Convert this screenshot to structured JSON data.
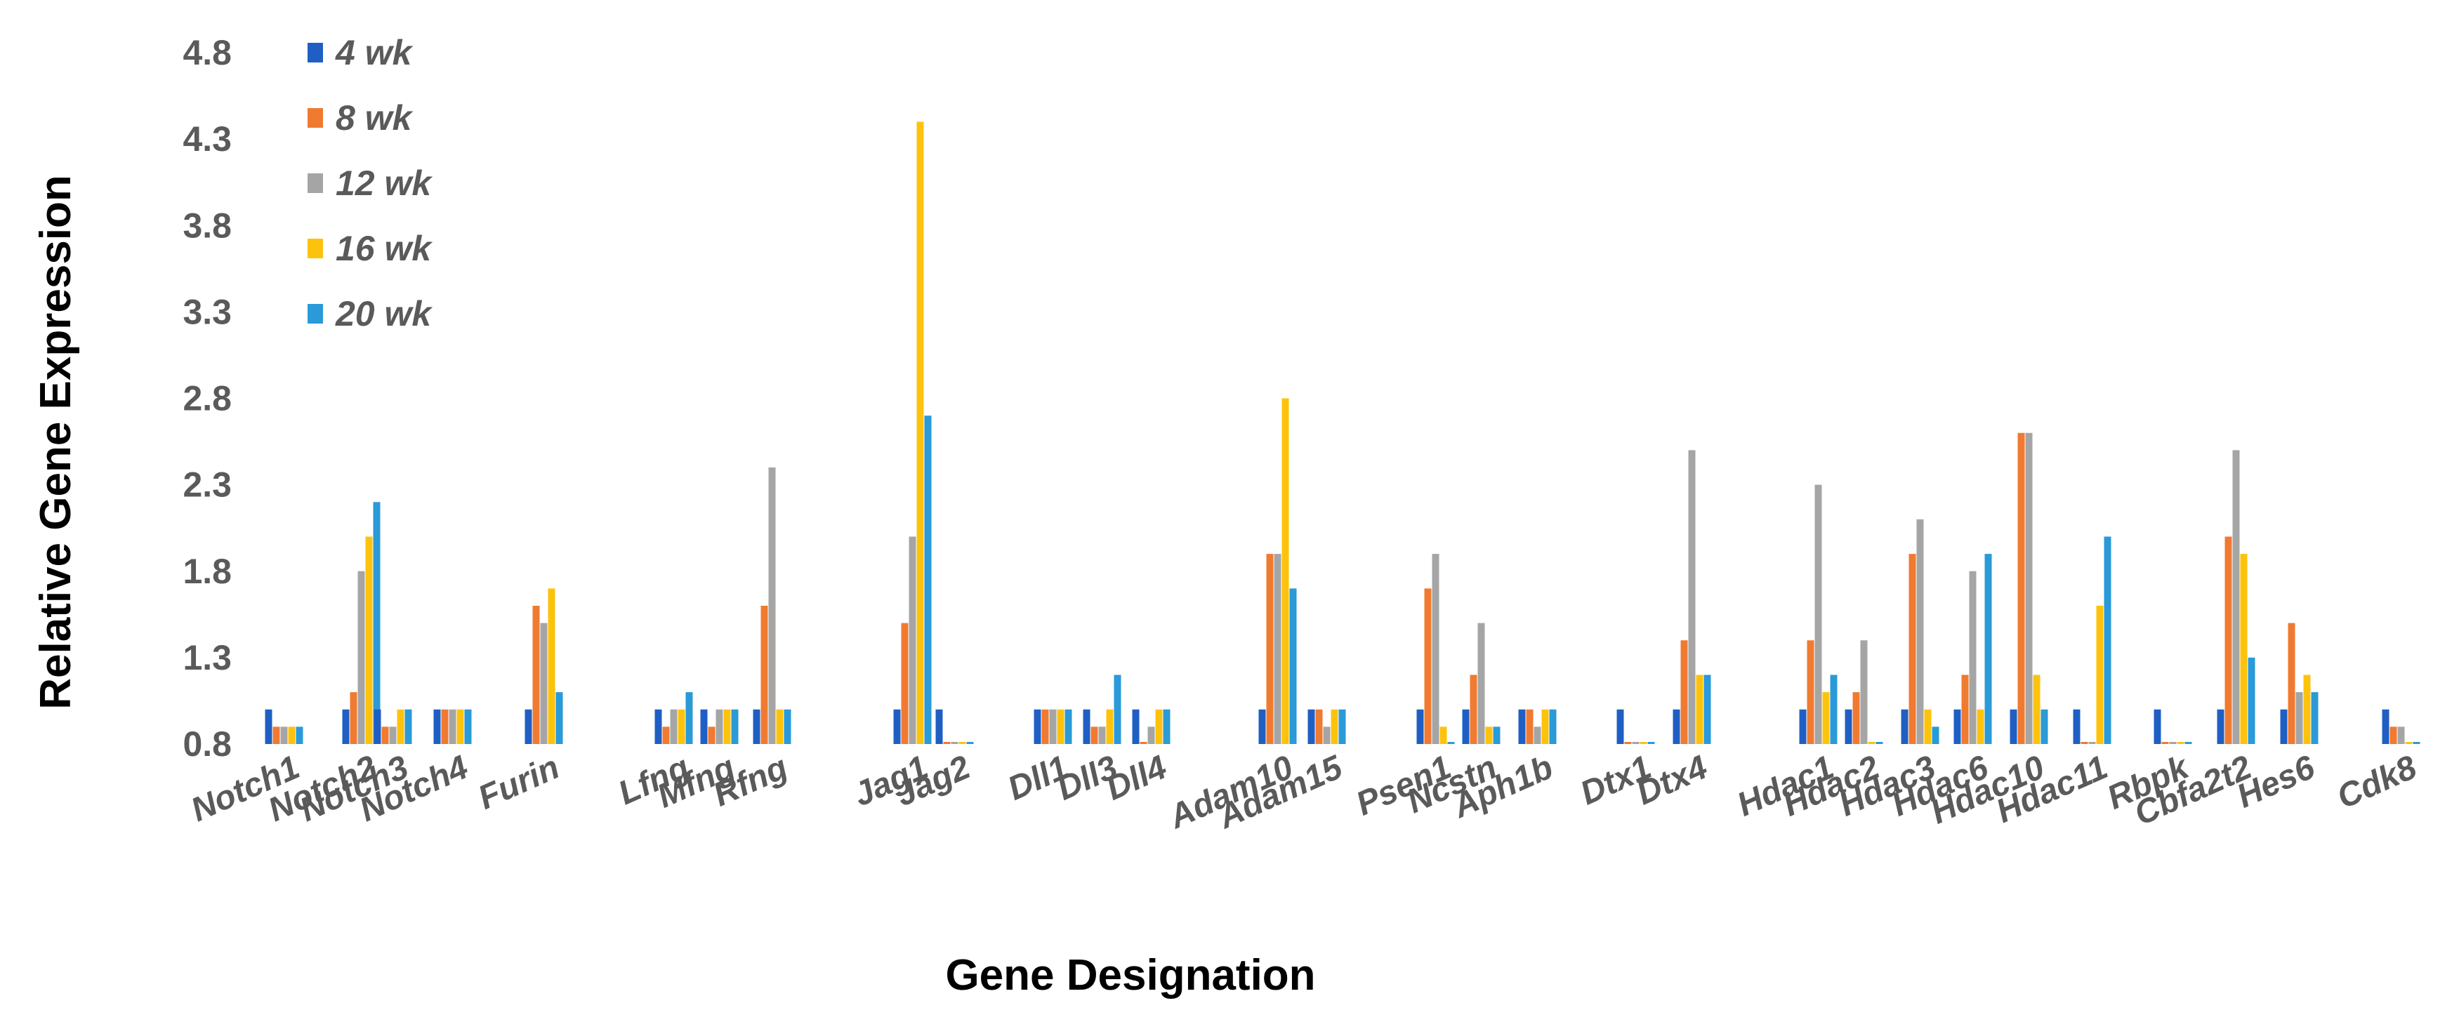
{
  "chart_data": {
    "type": "bar",
    "title": "",
    "xlabel": "Gene Designation",
    "ylabel": "Relative Gene Expression",
    "ylim": [
      0.8,
      4.8
    ],
    "yticks": [
      "0.8",
      "1.3",
      "1.8",
      "2.3",
      "2.8",
      "3.3",
      "3.8",
      "4.3",
      "4.8"
    ],
    "ytick_values": [
      0.8,
      1.3,
      1.8,
      2.3,
      2.8,
      3.3,
      3.8,
      4.3,
      4.8
    ],
    "grid": false,
    "legend_position": "top-left",
    "categories": [
      "Notch1",
      "Notch2",
      "Notch3",
      "Notch4",
      "Furin",
      "Lfng",
      "Mfng",
      "Rfng",
      "Jag1",
      "Jag2",
      "Dll1",
      "Dll3",
      "Dll4",
      "Adam10",
      "Adam15",
      "Psen1",
      "Ncstn",
      "Aph1b",
      "Dtx1",
      "Dtx4",
      "Hdac1",
      "Hdac2",
      "Hdac3",
      "Hdac6",
      "Hdac10",
      "Hdac11",
      "Rbpk",
      "Cbfa2t2",
      "Hes6",
      "Cdk8"
    ],
    "series": [
      {
        "name": "4 wk",
        "color": "#1f5fc4",
        "values": [
          1.0,
          1.0,
          1.0,
          1.0,
          1.0,
          1.0,
          1.0,
          1.0,
          1.0,
          1.0,
          1.0,
          1.0,
          1.0,
          1.0,
          1.0,
          1.0,
          1.0,
          1.0,
          1.0,
          1.0,
          1.0,
          1.0,
          1.0,
          1.0,
          1.0,
          1.0,
          1.0,
          1.0,
          1.0,
          1.0
        ]
      },
      {
        "name": "8 wk",
        "color": "#f07a30",
        "values": [
          0.9,
          1.1,
          0.9,
          1.0,
          1.6,
          0.9,
          0.9,
          1.6,
          1.5,
          0.8,
          1.0,
          0.9,
          0.8,
          1.9,
          1.0,
          1.7,
          1.2,
          1.0,
          0.8,
          1.4,
          1.4,
          1.1,
          1.9,
          1.2,
          2.6,
          0.8,
          0.8,
          2.0,
          1.5,
          0.9
        ]
      },
      {
        "name": "12 wk",
        "color": "#a5a5a5",
        "values": [
          0.9,
          1.8,
          0.9,
          1.0,
          1.5,
          1.0,
          1.0,
          2.4,
          2.0,
          0.8,
          1.0,
          0.9,
          0.9,
          1.9,
          0.9,
          1.9,
          1.5,
          0.9,
          0.8,
          2.5,
          2.3,
          1.4,
          2.1,
          1.8,
          2.6,
          0.8,
          0.8,
          2.5,
          1.1,
          0.9
        ]
      },
      {
        "name": "16 wk",
        "color": "#fdc30c",
        "values": [
          0.9,
          2.0,
          1.0,
          1.0,
          1.7,
          1.0,
          1.0,
          1.0,
          4.4,
          0.8,
          1.0,
          1.0,
          1.0,
          2.8,
          1.0,
          0.9,
          0.9,
          1.0,
          0.8,
          1.2,
          1.1,
          0.8,
          1.0,
          1.0,
          1.2,
          1.6,
          0.8,
          1.9,
          1.2,
          0.8
        ]
      },
      {
        "name": "20 wk",
        "color": "#2a9ad8",
        "values": [
          0.9,
          2.2,
          1.0,
          1.0,
          1.1,
          1.1,
          1.0,
          1.0,
          2.7,
          0.8,
          1.0,
          1.2,
          1.0,
          1.7,
          1.0,
          0.8,
          0.9,
          1.0,
          0.8,
          1.2,
          1.2,
          0.8,
          0.9,
          1.9,
          1.0,
          2.0,
          0.8,
          1.3,
          1.1,
          0.8
        ]
      }
    ]
  }
}
